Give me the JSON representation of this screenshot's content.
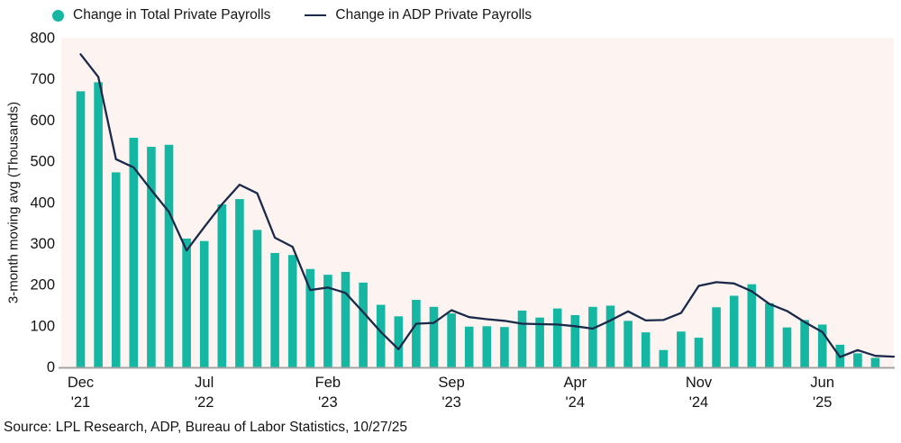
{
  "source": "Source: LPL Research, ADP, Bureau of Labor Statistics, 10/27/25",
  "colors": {
    "bar_teal": "#15b7a2",
    "line_navy": "#1b2a4b",
    "plot_background": "#fdf4f1",
    "axis_line": "#a3a3a3",
    "text": "#141414"
  },
  "chart_data": {
    "type": "bar",
    "title": "",
    "xlabel": "",
    "ylabel": "3-month moving avg (Thousands)",
    "ylim": [
      0,
      800
    ],
    "y_ticks": [
      0,
      100,
      200,
      300,
      400,
      500,
      600,
      700,
      800
    ],
    "grid": false,
    "legend_position": "top",
    "categories": [
      "Dec '21",
      "Jan '22",
      "Feb '22",
      "Mar '22",
      "Apr '22",
      "May '22",
      "Jun '22",
      "Jul '22",
      "Aug '22",
      "Sep '22",
      "Oct '22",
      "Nov '22",
      "Dec '22",
      "Jan '23",
      "Feb '23",
      "Mar '23",
      "Apr '23",
      "May '23",
      "Jun '23",
      "Jul '23",
      "Aug '23",
      "Sep '23",
      "Oct '23",
      "Nov '23",
      "Dec '23",
      "Jan '24",
      "Feb '24",
      "Mar '24",
      "Apr '24",
      "May '24",
      "Jun '24",
      "Jul '24",
      "Aug '24",
      "Sep '24",
      "Oct '24",
      "Nov '24",
      "Dec '24",
      "Jan '25",
      "Feb '25",
      "Mar '25",
      "Apr '25",
      "May '25",
      "Jun '25",
      "Jul '25",
      "Aug '25",
      "Sep '25"
    ],
    "series": [
      {
        "name": "Change in Total Private Payrolls",
        "render": "bar",
        "color": "#15b7a2",
        "values": [
          670,
          692,
          473,
          557,
          535,
          540,
          312,
          306,
          395,
          408,
          333,
          277,
          272,
          238,
          224,
          231,
          205,
          151,
          123,
          163,
          146,
          130,
          98,
          99,
          97,
          137,
          120,
          142,
          126,
          146,
          149,
          112,
          84,
          41,
          86,
          71,
          145,
          173,
          201,
          155,
          96,
          114,
          103,
          54,
          33,
          22
        ]
      },
      {
        "name": "Change in ADP Private Payrolls",
        "render": "line",
        "color": "#1b2a4b",
        "values": [
          760,
          705,
          505,
          485,
          430,
          377,
          283,
          340,
          395,
          443,
          422,
          314,
          292,
          187,
          193,
          180,
          133,
          85,
          43,
          105,
          107,
          138,
          121,
          116,
          112,
          105,
          104,
          103,
          99,
          93,
          113,
          135,
          113,
          114,
          131,
          197,
          206,
          203,
          184,
          153,
          136,
          109,
          85,
          24,
          41,
          27
        ],
        "extension_value": 25
      }
    ],
    "x_ticks": [
      {
        "index": 0,
        "line1": "Dec",
        "line2": "'21"
      },
      {
        "index": 7,
        "line1": "Jul",
        "line2": "'22"
      },
      {
        "index": 14,
        "line1": "Feb",
        "line2": "'23"
      },
      {
        "index": 21,
        "line1": "Sep",
        "line2": "'23"
      },
      {
        "index": 28,
        "line1": "Apr",
        "line2": "'24"
      },
      {
        "index": 35,
        "line1": "Nov",
        "line2": "'24"
      },
      {
        "index": 42,
        "line1": "Jun",
        "line2": "'25"
      }
    ]
  },
  "legend": {
    "items": [
      {
        "label": "Change in Total Private Payrolls"
      },
      {
        "label": "Change in ADP Private Payrolls"
      }
    ]
  }
}
